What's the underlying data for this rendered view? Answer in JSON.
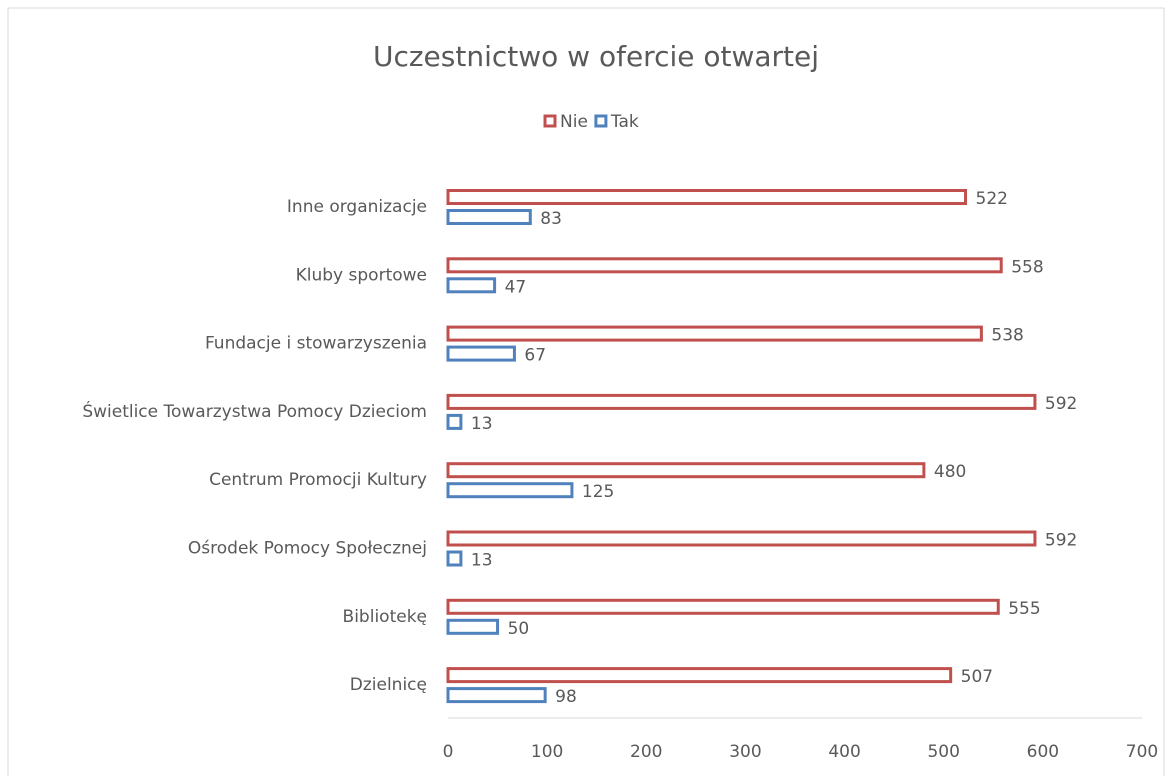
{
  "chart_data": {
    "type": "bar",
    "orientation": "horizontal",
    "title": "Uczestnictwo w ofercie otwartej",
    "categories": [
      "Inne organizacje",
      "Kluby sportowe",
      "Fundacje i stowarzyszenia",
      "Świetlice Towarzystwa Pomocy Dzieciom",
      "Centrum Promocji Kultury",
      "Ośrodek Pomocy Społecznej",
      "Bibliotekę",
      "Dzielnicę"
    ],
    "series": [
      {
        "name": "Nie",
        "color": "#c0504d",
        "values": [
          522,
          558,
          538,
          592,
          480,
          592,
          555,
          507
        ]
      },
      {
        "name": "Tak",
        "color": "#4f81bd",
        "values": [
          83,
          47,
          67,
          13,
          125,
          13,
          50,
          98
        ]
      }
    ],
    "xlim": [
      0,
      700
    ],
    "xticks": [
      0,
      100,
      200,
      300,
      400,
      500,
      600,
      700
    ],
    "grid": false,
    "legend": "top"
  }
}
